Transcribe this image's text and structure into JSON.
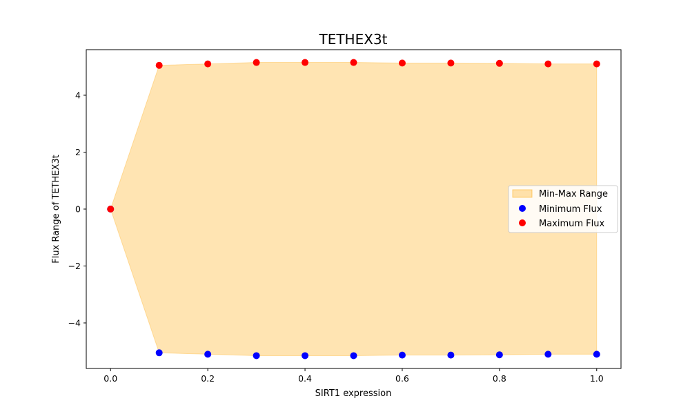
{
  "chart_data": {
    "type": "scatter",
    "title": "TETHEX3t",
    "xlabel": "SIRT1 expression",
    "ylabel": "Flux Range of TETHEX3t",
    "xlim": [
      -0.05,
      1.05
    ],
    "ylim": [
      -5.6,
      5.6
    ],
    "xticks": [
      0.0,
      0.2,
      0.4,
      0.6,
      0.8,
      1.0
    ],
    "xtick_labels": [
      "0.0",
      "0.2",
      "0.4",
      "0.6",
      "0.8",
      "1.0"
    ],
    "yticks": [
      -4,
      -2,
      0,
      2,
      4
    ],
    "ytick_labels": [
      "−4",
      "−2",
      "0",
      "2",
      "4"
    ],
    "x": [
      0.0,
      0.1,
      0.2,
      0.3,
      0.4,
      0.5,
      0.6,
      0.7,
      0.8,
      0.9,
      1.0
    ],
    "series": [
      {
        "name": "Minimum Flux",
        "color": "#0000ff",
        "values": [
          0.0,
          -5.05,
          -5.1,
          -5.15,
          -5.15,
          -5.15,
          -5.13,
          -5.13,
          -5.12,
          -5.1,
          -5.1
        ]
      },
      {
        "name": "Maximum Flux",
        "color": "#ff0000",
        "values": [
          0.0,
          5.05,
          5.1,
          5.15,
          5.15,
          5.15,
          5.13,
          5.13,
          5.12,
          5.1,
          5.1
        ]
      }
    ],
    "fill": {
      "name": "Min-Max Range",
      "color": "#ffa500",
      "opacity": 0.3
    },
    "legend_entries": [
      "Min-Max Range",
      "Minimum Flux",
      "Maximum Flux"
    ],
    "legend_position": "center-right",
    "grid": false
  }
}
